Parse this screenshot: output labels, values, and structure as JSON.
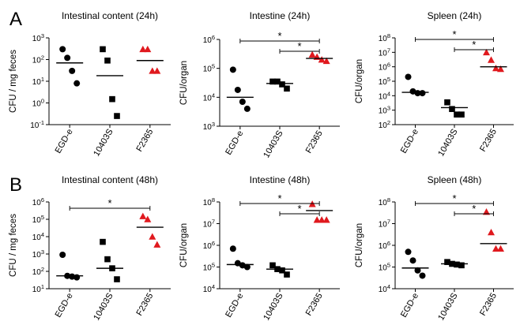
{
  "panel_letters": [
    "A",
    "B"
  ],
  "colors": {
    "black": "#000000",
    "red": "#e0191e"
  },
  "chart_data": [
    {
      "type": "scatter",
      "letter": "A",
      "title": "Intestinal content (24h)",
      "ylabel": "CFU / mg feces",
      "scale": "log",
      "ylim_exp": [
        -1,
        3
      ],
      "categories": [
        "EGD-e",
        "10403S",
        "F2365"
      ],
      "markers": [
        "circle",
        "square",
        "triangle"
      ],
      "marker_colors": [
        "#000000",
        "#000000",
        "#e0191e"
      ],
      "points": [
        [
          300,
          120,
          30,
          8
        ],
        [
          300,
          90,
          1.5,
          0.25
        ],
        [
          300,
          300,
          30,
          30
        ]
      ],
      "medians": [
        70,
        18,
        90
      ],
      "significance": []
    },
    {
      "type": "scatter",
      "letter": "",
      "title": "Intestine (24h)",
      "ylabel": "CFU/organ",
      "scale": "log",
      "ylim_exp": [
        3,
        6
      ],
      "categories": [
        "EGD-e",
        "10403S",
        "F2365"
      ],
      "markers": [
        "circle",
        "square",
        "triangle"
      ],
      "marker_colors": [
        "#000000",
        "#000000",
        "#e0191e"
      ],
      "points": [
        [
          90000,
          18000,
          7000,
          4000
        ],
        [
          35000,
          35000,
          28000,
          20000
        ],
        [
          300000,
          250000,
          200000,
          180000
        ]
      ],
      "medians": [
        10000,
        30000,
        220000
      ],
      "significance": [
        {
          "from": 0,
          "to": 2,
          "label": "*"
        },
        {
          "from": 1,
          "to": 2,
          "label": "*"
        }
      ]
    },
    {
      "type": "scatter",
      "letter": "",
      "title": "Spleen (24h)",
      "ylabel": "CFU/organ",
      "scale": "log",
      "ylim_exp": [
        2,
        8
      ],
      "categories": [
        "EGD-e",
        "10403S",
        "F2365"
      ],
      "markers": [
        "circle",
        "square",
        "triangle"
      ],
      "marker_colors": [
        "#000000",
        "#000000",
        "#e0191e"
      ],
      "points": [
        [
          200000,
          20000,
          15000,
          15000
        ],
        [
          3500,
          1200,
          500,
          500
        ],
        [
          10000000,
          3000000,
          800000,
          700000
        ]
      ],
      "medians": [
        17000,
        1500,
        1000000
      ],
      "significance": [
        {
          "from": 0,
          "to": 2,
          "label": "*"
        },
        {
          "from": 1,
          "to": 2,
          "label": "*"
        }
      ]
    },
    {
      "type": "scatter",
      "letter": "B",
      "title": "Intestinal content (48h)",
      "ylabel": "CFU / mg feces",
      "scale": "log",
      "ylim_exp": [
        1,
        6
      ],
      "categories": [
        "EGD-e",
        "10403S",
        "F2365"
      ],
      "markers": [
        "circle",
        "square",
        "triangle"
      ],
      "marker_colors": [
        "#000000",
        "#000000",
        "#e0191e"
      ],
      "points": [
        [
          900,
          55,
          50,
          45
        ],
        [
          5000,
          500,
          150,
          35
        ],
        [
          150000,
          100000,
          10000,
          3500
        ]
      ],
      "medians": [
        55,
        150,
        35000
      ],
      "significance": [
        {
          "from": 0,
          "to": 2,
          "label": "*"
        }
      ]
    },
    {
      "type": "scatter",
      "letter": "",
      "title": "Intestine (48h)",
      "ylabel": "CFU/organ",
      "scale": "log",
      "ylim_exp": [
        4,
        8
      ],
      "categories": [
        "EGD-e",
        "10403S",
        "F2365"
      ],
      "markers": [
        "circle",
        "square",
        "triangle"
      ],
      "marker_colors": [
        "#000000",
        "#000000",
        "#e0191e"
      ],
      "points": [
        [
          700000,
          150000,
          120000,
          100000
        ],
        [
          120000,
          80000,
          70000,
          45000
        ],
        [
          80000000,
          15000000,
          15000000,
          15000000
        ]
      ],
      "medians": [
        130000,
        80000,
        40000000
      ],
      "significance": [
        {
          "from": 0,
          "to": 2,
          "label": "*"
        },
        {
          "from": 1,
          "to": 2,
          "label": "*"
        }
      ]
    },
    {
      "type": "scatter",
      "letter": "",
      "title": "Spleen (48h)",
      "ylabel": "CFU/organ",
      "scale": "log",
      "ylim_exp": [
        4,
        8
      ],
      "categories": [
        "EGD-e",
        "10403S",
        "F2365"
      ],
      "markers": [
        "circle",
        "square",
        "triangle"
      ],
      "marker_colors": [
        "#000000",
        "#000000",
        "#e0191e"
      ],
      "points": [
        [
          500000,
          200000,
          70000,
          40000
        ],
        [
          170000,
          140000,
          130000,
          120000
        ],
        [
          35000000,
          4000000,
          700000,
          700000
        ]
      ],
      "medians": [
        90000,
        140000,
        1200000
      ],
      "significance": [
        {
          "from": 0,
          "to": 2,
          "label": "*"
        },
        {
          "from": 1,
          "to": 2,
          "label": "*"
        }
      ]
    }
  ]
}
